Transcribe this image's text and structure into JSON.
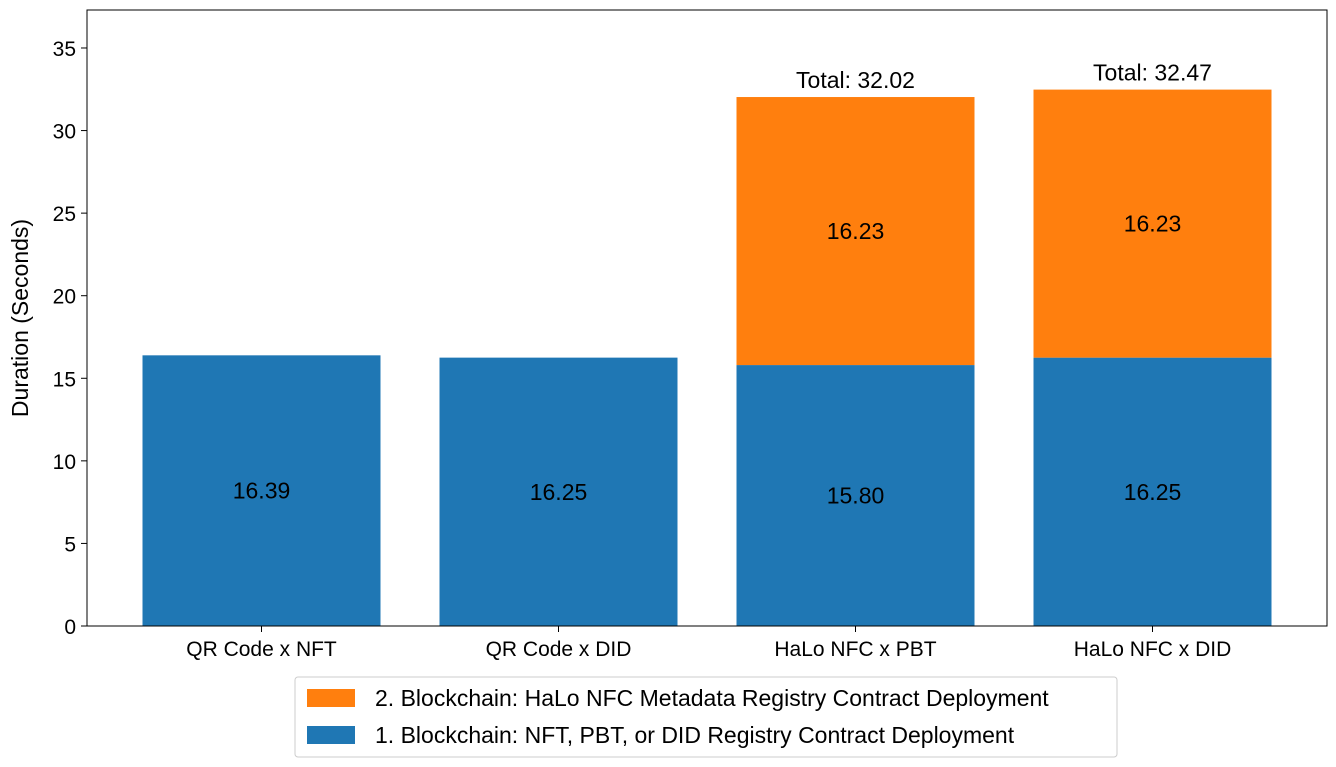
{
  "chart_data": {
    "type": "bar",
    "stacked": true,
    "categories": [
      "QR Code x NFT",
      "QR Code x DID",
      "HaLo NFC x PBT",
      "HaLo NFC x DID"
    ],
    "series": [
      {
        "name": "1. Blockchain: NFT, PBT, or DID Registry Contract Deployment",
        "color": "#1f77b4",
        "values": [
          16.39,
          16.25,
          15.8,
          16.25
        ],
        "labels": [
          "16.39",
          "16.25",
          "15.80",
          "16.25"
        ]
      },
      {
        "name": "2. Blockchain: HaLo NFC Metadata Registry Contract Deployment",
        "color": "#ff7f0e",
        "values": [
          0,
          0,
          16.23,
          16.23
        ],
        "labels": [
          "",
          "",
          "16.23",
          "16.23"
        ]
      }
    ],
    "totals": [
      "",
      "",
      "Total: 32.02",
      "Total: 32.47"
    ],
    "xlabel": "",
    "ylabel": "Duration (Seconds)",
    "ylim": [
      0,
      37.3
    ],
    "yticks": [
      0,
      5,
      10,
      15,
      20,
      25,
      30,
      35
    ],
    "grid": false,
    "legend_position": "bottom-center"
  }
}
